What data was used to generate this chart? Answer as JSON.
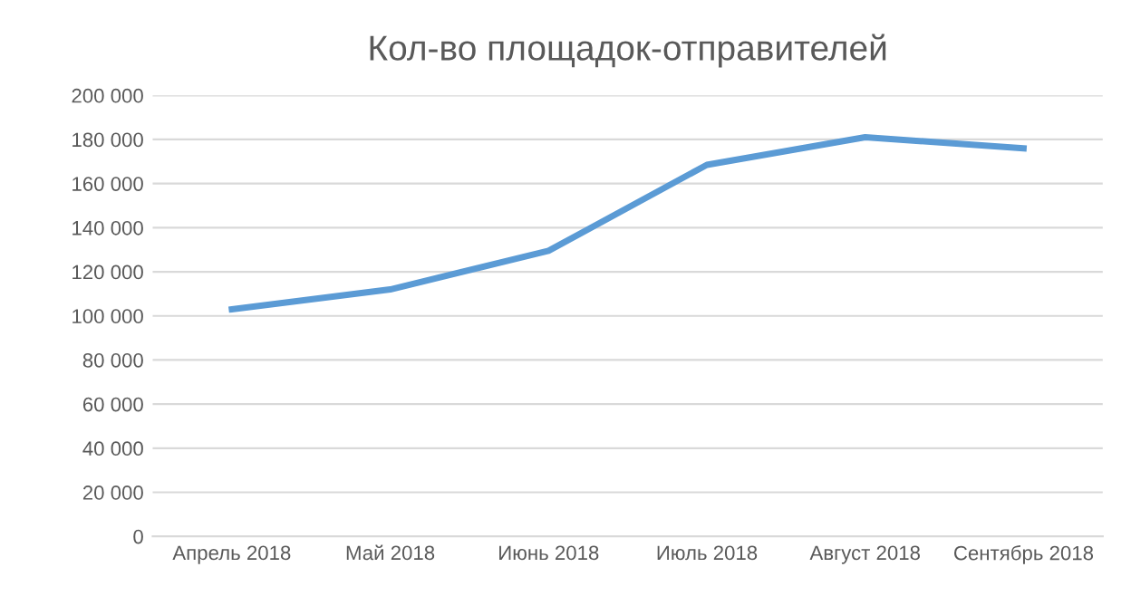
{
  "chart_data": {
    "type": "line",
    "title": "Кол-во площадок-отправителей",
    "categories": [
      "Апрель 2018",
      "Май 2018",
      "Июнь 2018",
      "Июль 2018",
      "Август 2018",
      "Сентябрь 2018"
    ],
    "series": [
      {
        "color": "#5b9bd5",
        "values": [
          103000,
          112000,
          129500,
          168500,
          181000,
          176000
        ]
      }
    ],
    "ylim": [
      0,
      200000
    ],
    "yticks": [
      {
        "value": 0,
        "label": "0"
      },
      {
        "value": 20000,
        "label": "20 000"
      },
      {
        "value": 40000,
        "label": "40 000"
      },
      {
        "value": 60000,
        "label": "60 000"
      },
      {
        "value": 80000,
        "label": "80 000"
      },
      {
        "value": 100000,
        "label": "100 000"
      },
      {
        "value": 120000,
        "label": "120 000"
      },
      {
        "value": 140000,
        "label": "140 000"
      },
      {
        "value": 160000,
        "label": "160 000"
      },
      {
        "value": 180000,
        "label": "180 000"
      },
      {
        "value": 200000,
        "label": "200 000"
      }
    ],
    "grid": "y",
    "legend": false,
    "marker": "none",
    "line_style": "solid"
  }
}
